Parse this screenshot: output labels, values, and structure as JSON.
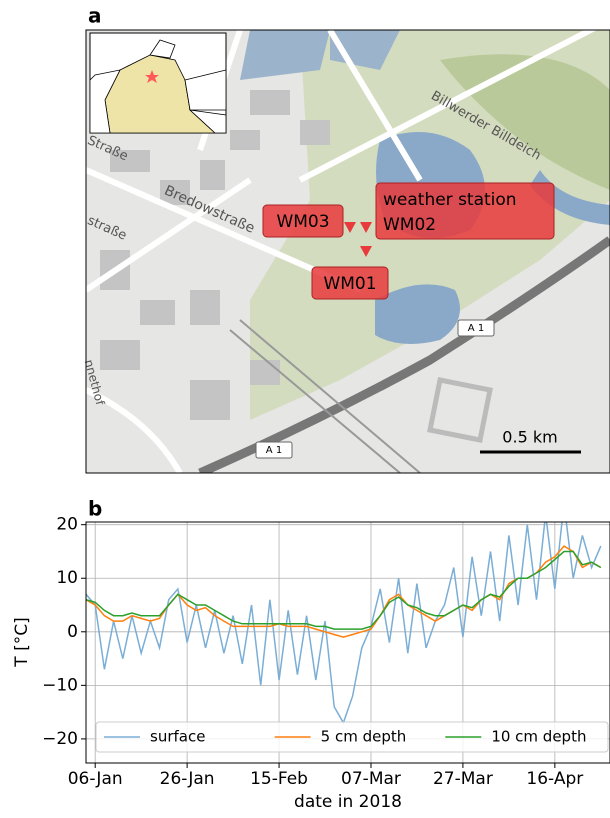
{
  "map": {
    "panel_label": "a",
    "stations": {
      "wm03": "WM03",
      "wm02": [
        "weather station",
        "WM02"
      ],
      "wm01": "WM01"
    },
    "streets": {
      "bredow": "Bredowstraße",
      "strasse1": "Straße",
      "strasse2": "straße",
      "billdeich": "Billwerder Billdeich",
      "hof": "nnethof"
    },
    "motorway": "A 1",
    "scale": "0.5 km"
  },
  "chart_data": {
    "type": "line",
    "panel_label": "b",
    "ylabel": "T [°C]",
    "xlabel": "date in 2018",
    "x": [
      "2018-01-04",
      "2018-01-06",
      "2018-01-08",
      "2018-01-10",
      "2018-01-12",
      "2018-01-14",
      "2018-01-16",
      "2018-01-18",
      "2018-01-20",
      "2018-01-22",
      "2018-01-24",
      "2018-01-26",
      "2018-01-28",
      "2018-01-30",
      "2018-02-01",
      "2018-02-03",
      "2018-02-05",
      "2018-02-07",
      "2018-02-09",
      "2018-02-11",
      "2018-02-13",
      "2018-02-15",
      "2018-02-17",
      "2018-02-19",
      "2018-02-21",
      "2018-02-23",
      "2018-02-25",
      "2018-02-27",
      "2018-03-01",
      "2018-03-03",
      "2018-03-05",
      "2018-03-07",
      "2018-03-09",
      "2018-03-11",
      "2018-03-13",
      "2018-03-15",
      "2018-03-17",
      "2018-03-19",
      "2018-03-21",
      "2018-03-23",
      "2018-03-25",
      "2018-03-27",
      "2018-03-29",
      "2018-03-31",
      "2018-04-02",
      "2018-04-04",
      "2018-04-06",
      "2018-04-08",
      "2018-04-10",
      "2018-04-12",
      "2018-04-14",
      "2018-04-16",
      "2018-04-18",
      "2018-04-20",
      "2018-04-22",
      "2018-04-24",
      "2018-04-26"
    ],
    "series": [
      {
        "name": "surface",
        "color": "#7aaed6",
        "values": [
          7,
          5,
          -7,
          2,
          -5,
          3,
          -4,
          2,
          -3,
          6,
          8,
          -2,
          5,
          -3,
          4,
          -4,
          3,
          -6,
          5,
          -10,
          6,
          -9,
          4,
          -8,
          3,
          -9,
          2,
          -14,
          -17,
          -12,
          -3,
          1,
          8,
          -2,
          10,
          -4,
          9,
          -3,
          2,
          5,
          12,
          -1,
          14,
          3,
          15,
          2,
          18,
          5,
          20,
          6,
          22,
          8,
          24,
          10,
          18,
          12,
          16
        ]
      },
      {
        "name": "5 cm depth",
        "color": "#ff7f0e",
        "values": [
          6,
          5,
          3,
          2,
          2,
          3,
          2.5,
          2,
          2.5,
          5,
          7,
          5,
          4,
          4.5,
          3,
          2,
          1,
          1,
          1,
          1,
          1,
          1.5,
          1,
          1,
          1,
          0.5,
          0,
          -0.5,
          -1,
          -0.5,
          0,
          0.5,
          3,
          6,
          7,
          5,
          4,
          3,
          2,
          3,
          4,
          5,
          4,
          6,
          7,
          6,
          9,
          10,
          10,
          11,
          13,
          14,
          16,
          15,
          12,
          13,
          12
        ]
      },
      {
        "name": "10 cm depth",
        "color": "#2ca02c",
        "values": [
          6,
          5.5,
          4,
          3,
          3,
          3.5,
          3,
          3,
          3,
          5,
          7,
          6,
          5,
          5,
          4,
          3,
          2,
          1.5,
          1.5,
          1.5,
          1.5,
          1.5,
          1.5,
          1.5,
          1.5,
          1,
          1,
          0.5,
          0.5,
          0.5,
          0.5,
          1,
          3,
          5.5,
          6.5,
          5,
          4.5,
          3.5,
          3,
          3,
          4,
          5,
          4.5,
          6,
          7,
          6.5,
          8.5,
          10,
          10,
          11,
          12,
          13.5,
          15,
          15,
          12.5,
          13,
          12
        ]
      }
    ],
    "xlim": [
      "2018-01-04",
      "2018-04-28"
    ],
    "xticks": [
      {
        "value": "2018-01-06",
        "label": "06-Jan"
      },
      {
        "value": "2018-01-26",
        "label": "26-Jan"
      },
      {
        "value": "2018-02-15",
        "label": "15-Feb"
      },
      {
        "value": "2018-03-07",
        "label": "07-Mar"
      },
      {
        "value": "2018-03-27",
        "label": "27-Mar"
      },
      {
        "value": "2018-04-16",
        "label": "16-Apr"
      }
    ],
    "ylim": [
      -24.5,
      20.5
    ],
    "yticks": [
      {
        "value": -20,
        "label": "−20"
      },
      {
        "value": -10,
        "label": "−10"
      },
      0,
      10,
      20
    ],
    "grid": true,
    "legend": "bottom"
  }
}
